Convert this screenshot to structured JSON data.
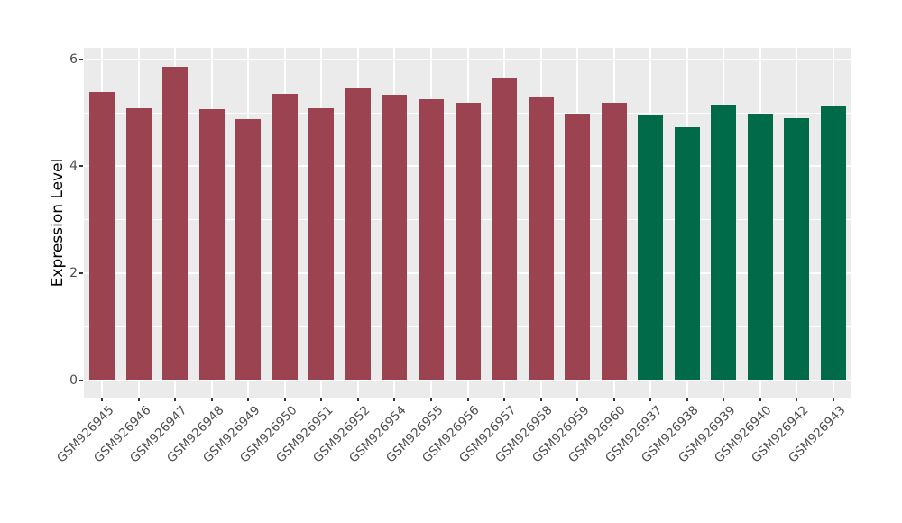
{
  "figure": {
    "background": "#FFFFFF",
    "panel_background": "#EBEBEB",
    "grid_color": "#FFFFFF"
  },
  "chart_data": {
    "type": "bar",
    "title": "",
    "xlabel": "",
    "ylabel": "Expression Level",
    "ylim": [
      0,
      6
    ],
    "yticks": [
      0,
      2,
      4,
      6
    ],
    "yticks_minor": [
      1,
      3,
      5
    ],
    "grid": true,
    "legend": "none",
    "categories": [
      "GSM926945",
      "GSM926946",
      "GSM926947",
      "GSM926948",
      "GSM926949",
      "GSM926950",
      "GSM926951",
      "GSM926952",
      "GSM926954",
      "GSM926955",
      "GSM926956",
      "GSM926957",
      "GSM926958",
      "GSM926959",
      "GSM926960",
      "GSM926937",
      "GSM926938",
      "GSM926939",
      "GSM926940",
      "GSM926942",
      "GSM926943"
    ],
    "values": [
      5.39,
      5.08,
      5.86,
      5.07,
      4.88,
      5.36,
      5.08,
      5.46,
      5.34,
      5.26,
      5.19,
      5.66,
      5.28,
      4.99,
      5.19,
      4.96,
      4.73,
      5.16,
      4.99,
      4.9,
      5.13
    ],
    "groups": [
      "group1",
      "group1",
      "group1",
      "group1",
      "group1",
      "group1",
      "group1",
      "group1",
      "group1",
      "group1",
      "group1",
      "group1",
      "group1",
      "group1",
      "group1",
      "group2",
      "group2",
      "group2",
      "group2",
      "group2",
      "group2"
    ],
    "group_colors": {
      "group1": "#9B4351",
      "group2": "#016A49"
    }
  }
}
